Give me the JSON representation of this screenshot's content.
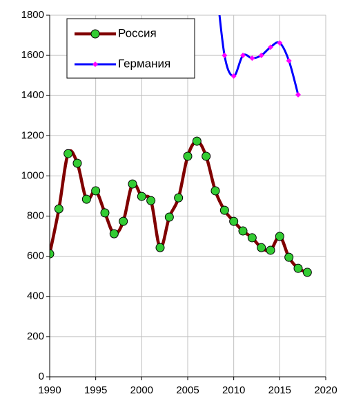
{
  "chart_data": {
    "type": "line",
    "x": [
      1990,
      1991,
      1992,
      1993,
      1994,
      1995,
      1996,
      1997,
      1998,
      1999,
      2000,
      2001,
      2002,
      2003,
      2004,
      2005,
      2006,
      2007,
      2008,
      2009,
      2010,
      2011,
      2012,
      2013,
      2014,
      2015,
      2016,
      2017,
      2018
    ],
    "series": [
      {
        "name": "Россия",
        "color": "#800000",
        "marker_color": "#33cc33",
        "marker": "circle",
        "values": [
          612,
          836,
          1111,
          1063,
          884,
          926,
          816,
          712,
          774,
          960,
          898,
          877,
          643,
          795,
          891,
          1098,
          1173,
          1098,
          926,
          829,
          774,
          726,
          692,
          643,
          630,
          699,
          595,
          540,
          520
        ]
      },
      {
        "name": "Германия",
        "color": "#0000ff",
        "marker_color": "#ff00ff",
        "marker": "diamond",
        "values": [
          null,
          null,
          null,
          null,
          null,
          null,
          null,
          null,
          null,
          null,
          null,
          null,
          null,
          null,
          null,
          null,
          null,
          null,
          2000,
          1600,
          1497,
          1600,
          1586,
          1600,
          1641,
          1662,
          1573,
          1404,
          null
        ]
      }
    ],
    "xlim": [
      1990,
      2020
    ],
    "xticks": [
      1990,
      1995,
      2000,
      2005,
      2010,
      2015,
      2020
    ],
    "ylim": [
      0,
      1800
    ],
    "yticks": [
      0,
      200,
      400,
      600,
      800,
      1000,
      1200,
      1400,
      1600,
      1800
    ],
    "grid": true,
    "legend": "upper left"
  }
}
